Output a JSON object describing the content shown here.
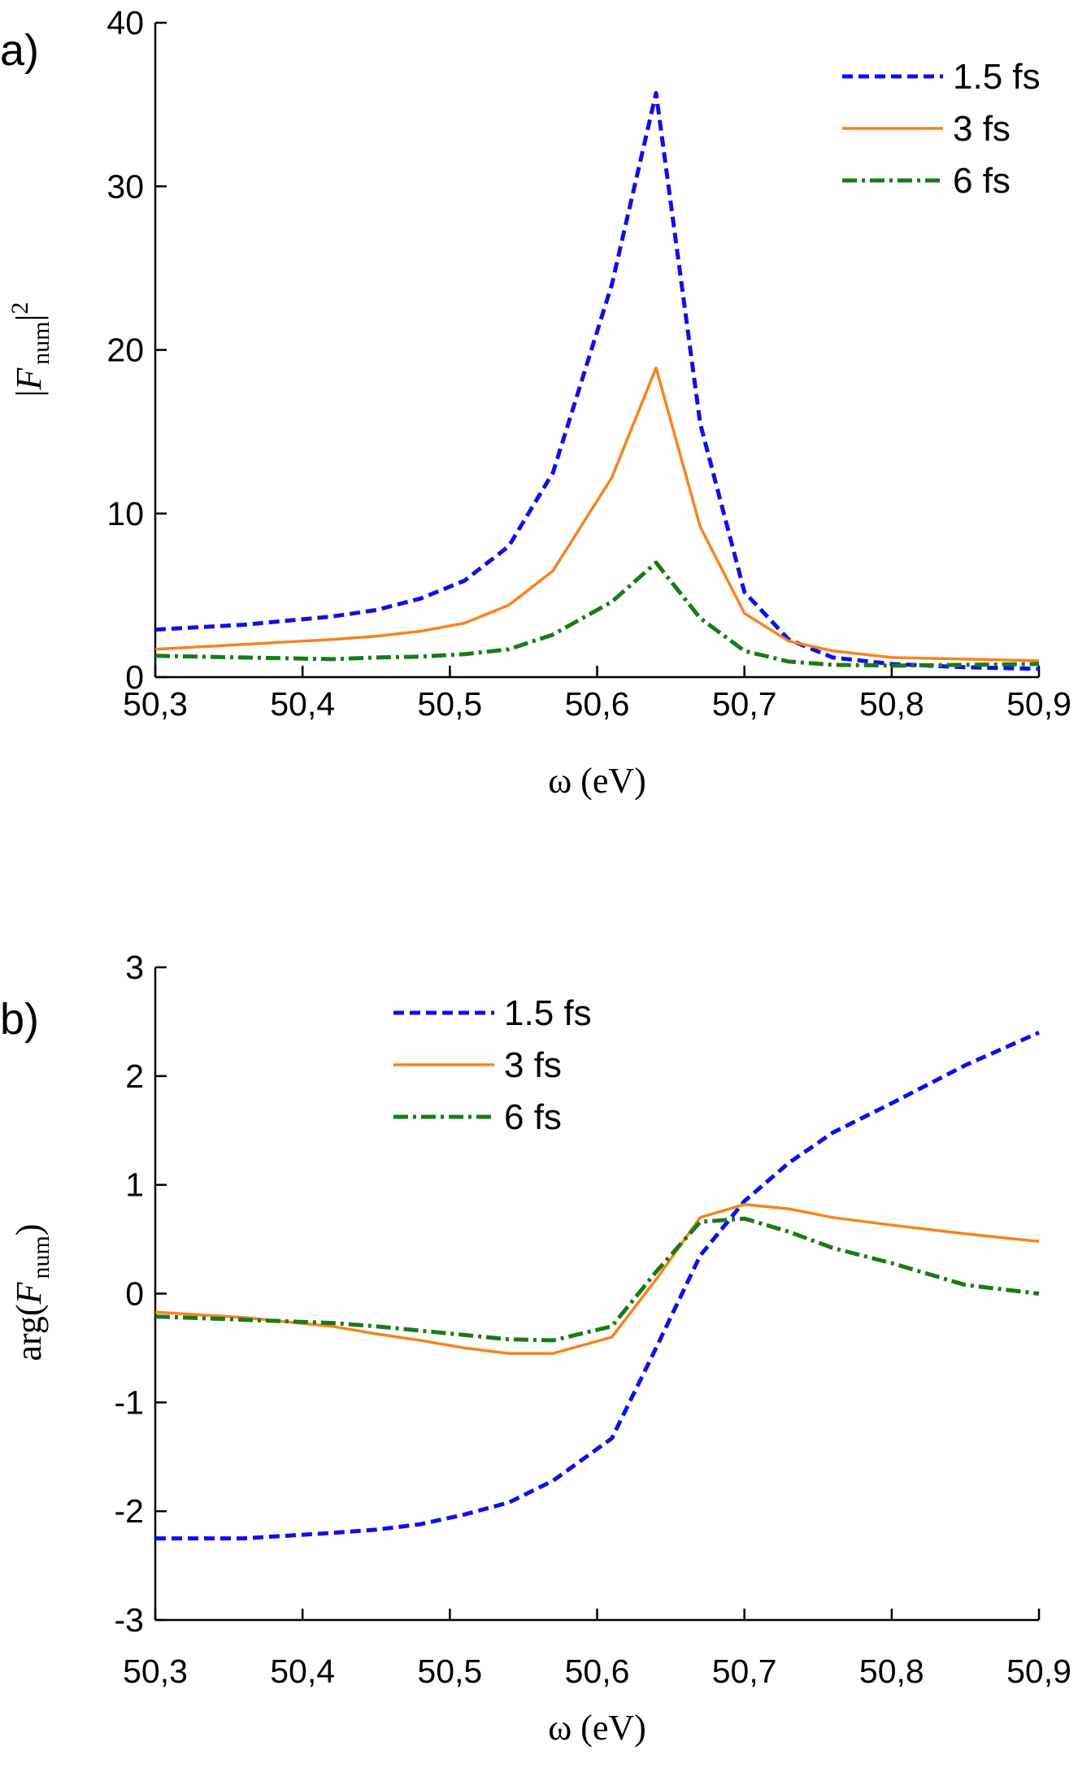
{
  "chart_data": [
    {
      "type": "line",
      "panel_label": "a)",
      "xlabel": "ω (eV)",
      "ylabel": [
        "|",
        "F",
        "num",
        "|",
        "2"
      ],
      "legend": "upper right",
      "x": [
        50.3,
        50.36,
        50.42,
        50.45,
        50.48,
        50.51,
        50.54,
        50.57,
        50.61,
        50.64,
        50.67,
        50.7,
        50.73,
        50.76,
        50.8,
        50.85,
        50.9
      ],
      "xlim": [
        50.3,
        50.9
      ],
      "xticks": [
        {
          "value": 50.3,
          "label": "50,3"
        },
        {
          "value": 50.4,
          "label": "50,4"
        },
        {
          "value": 50.5,
          "label": "50,5"
        },
        {
          "value": 50.6,
          "label": "50,6"
        },
        {
          "value": 50.7,
          "label": "50,7"
        },
        {
          "value": 50.8,
          "label": "50,8"
        },
        {
          "value": 50.9,
          "label": "50,9"
        }
      ],
      "ylim": [
        0,
        40
      ],
      "yticks": [
        0,
        10,
        20,
        30,
        40
      ],
      "series": [
        {
          "name": "1.5 fs",
          "color": "#0a12e6",
          "values": [
            2.9,
            3.2,
            3.7,
            4.1,
            4.8,
            5.9,
            8.0,
            12.5,
            24,
            35.7,
            15.5,
            5.2,
            2.3,
            1.2,
            0.8,
            0.6,
            0.5
          ]
        },
        {
          "name": "3 fs",
          "color": "#f5851f",
          "values": [
            1.7,
            2.0,
            2.3,
            2.5,
            2.8,
            3.3,
            4.4,
            6.5,
            12.2,
            18.9,
            9.2,
            3.9,
            2.2,
            1.6,
            1.2,
            1.1,
            1.0
          ]
        },
        {
          "name": "6 fs",
          "color": "#1a7a1a",
          "values": [
            1.3,
            1.2,
            1.1,
            1.2,
            1.25,
            1.4,
            1.7,
            2.6,
            4.6,
            7.0,
            3.6,
            1.6,
            0.95,
            0.75,
            0.7,
            0.75,
            0.8
          ]
        }
      ]
    },
    {
      "type": "line",
      "panel_label": "b)",
      "xlabel": "ω (eV)",
      "ylabel": [
        "arg(",
        "F",
        "num",
        ")"
      ],
      "legend": "upper center",
      "x": [
        50.3,
        50.36,
        50.42,
        50.45,
        50.48,
        50.51,
        50.54,
        50.57,
        50.61,
        50.64,
        50.67,
        50.7,
        50.73,
        50.76,
        50.8,
        50.85,
        50.9
      ],
      "xlim": [
        50.3,
        50.9
      ],
      "xticks": [
        {
          "value": 50.3,
          "label": "50,3"
        },
        {
          "value": 50.4,
          "label": "50,4"
        },
        {
          "value": 50.5,
          "label": "50,5"
        },
        {
          "value": 50.6,
          "label": "50,6"
        },
        {
          "value": 50.7,
          "label": "50,7"
        },
        {
          "value": 50.8,
          "label": "50,8"
        },
        {
          "value": 50.9,
          "label": "50,9"
        }
      ],
      "ylim": [
        -3,
        3
      ],
      "yticks": [
        -3,
        -2,
        -1,
        0,
        1,
        2,
        3
      ],
      "series": [
        {
          "name": "1.5 fs",
          "color": "#0a12e6",
          "values": [
            -2.25,
            -2.25,
            -2.2,
            -2.17,
            -2.12,
            -2.03,
            -1.92,
            -1.72,
            -1.33,
            -0.5,
            0.35,
            0.85,
            1.2,
            1.48,
            1.75,
            2.1,
            2.4
          ]
        },
        {
          "name": "3 fs",
          "color": "#f5851f",
          "values": [
            -0.17,
            -0.22,
            -0.3,
            -0.37,
            -0.43,
            -0.5,
            -0.55,
            -0.55,
            -0.4,
            0.13,
            0.7,
            0.82,
            0.78,
            0.7,
            0.63,
            0.55,
            0.48
          ]
        },
        {
          "name": "6 fs",
          "color": "#1a7a1a",
          "values": [
            -0.21,
            -0.24,
            -0.27,
            -0.3,
            -0.34,
            -0.38,
            -0.42,
            -0.43,
            -0.3,
            0.2,
            0.66,
            0.69,
            0.57,
            0.42,
            0.28,
            0.08,
            0.0
          ]
        }
      ]
    }
  ]
}
